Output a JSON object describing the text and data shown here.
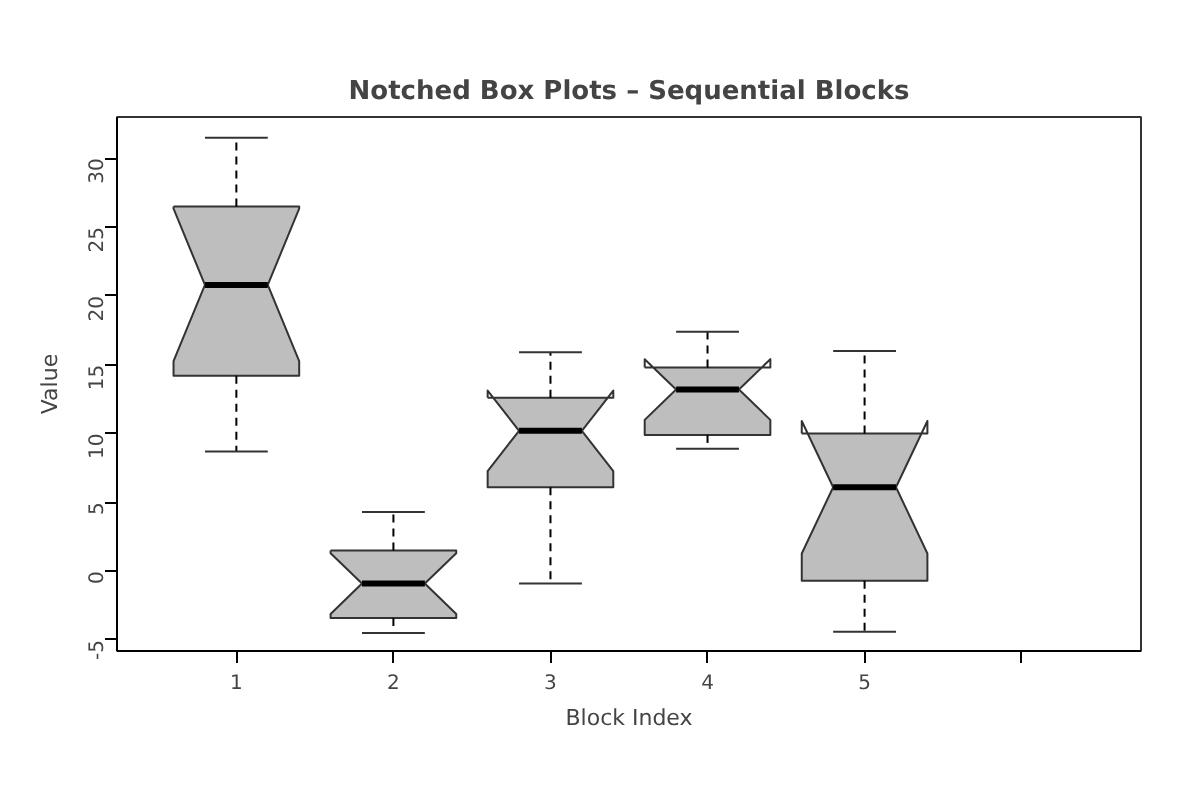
{
  "chart_data": {
    "type": "box",
    "title": "Notched Box Plots – Sequential Blocks",
    "xlabel": "Block Index",
    "ylabel": "Value",
    "categories": [
      "1",
      "2",
      "3",
      "4",
      "5",
      null
    ],
    "color": "#bebebe",
    "boxes": [
      {
        "low": 8.7,
        "q1": 14.2,
        "median": 20.8,
        "q3": 26.5,
        "high": 31.5
      },
      {
        "low": -4.5,
        "q1": -3.4,
        "median": -0.9,
        "q3": 1.5,
        "high": 4.3
      },
      {
        "low": -0.9,
        "q1": 6.1,
        "median": 10.2,
        "q3": 12.6,
        "high": 15.9
      },
      {
        "low": 8.9,
        "q1": 9.9,
        "median": 13.2,
        "q3": 14.8,
        "high": 17.4
      },
      {
        "low": -4.4,
        "q1": -0.7,
        "median": 6.1,
        "q3": 10.0,
        "high": 16.0
      },
      null
    ],
    "ylim": [
      -5.8,
      33
    ],
    "yticks": [
      -5,
      0,
      5,
      10,
      15,
      20,
      25,
      30
    ],
    "grid": false
  }
}
